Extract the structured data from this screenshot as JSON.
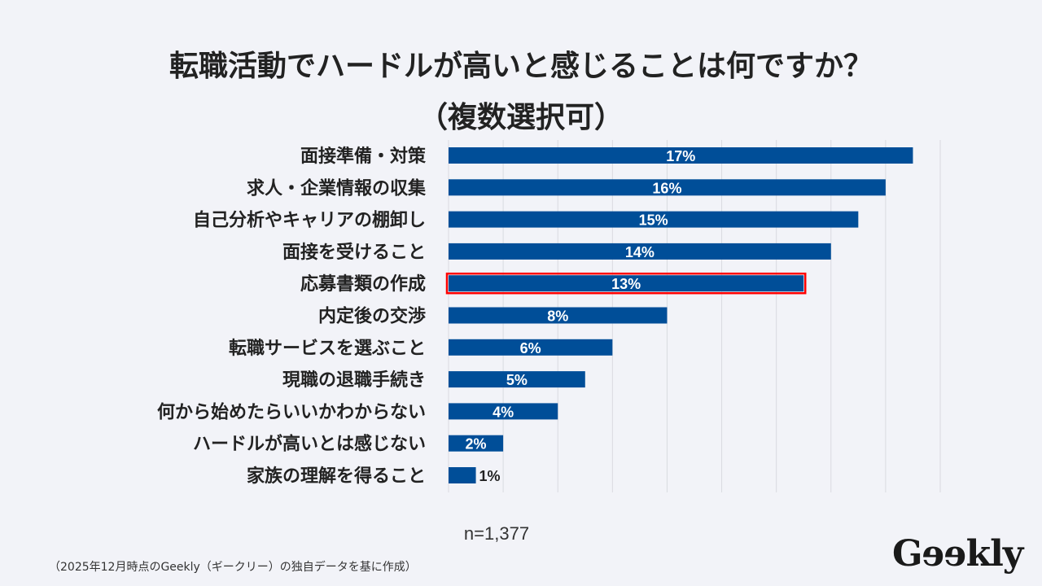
{
  "chart_data": {
    "type": "bar",
    "orientation": "horizontal",
    "title": [
      "転職活動でハードルが高いと感じることは何ですか？",
      "（複数選択可）"
    ],
    "categories": [
      "面接準備・対策",
      "求人・企業情報の収集",
      "自己分析やキャリアの棚卸し",
      "面接を受けること",
      "応募書類の作成",
      "内定後の交渉",
      "転職サービスを選ぶこと",
      "現職の退職手続き",
      "何から始めたらいいかわからない",
      "ハードルが高いとは感じない",
      "家族の理解を得ること"
    ],
    "values": [
      17,
      16,
      15,
      14,
      13,
      8,
      6,
      5,
      4,
      2,
      1
    ],
    "data_labels": [
      "17%",
      "16%",
      "15%",
      "14%",
      "13%",
      "8%",
      "6%",
      "5%",
      "4%",
      "2%",
      "1%"
    ],
    "unit": "%",
    "xlim": [
      0,
      18
    ],
    "grid": true,
    "highlighted_category": "応募書類の作成",
    "colors": {
      "bar": "#004e98",
      "highlight_border": "#ff0000",
      "grid": "#d9dae0"
    }
  },
  "sample_size": "n=1,377",
  "source_note": "（2025年12月時点のGeekly（ギークリー）の独自データを基に作成）",
  "logo": "Geekly"
}
